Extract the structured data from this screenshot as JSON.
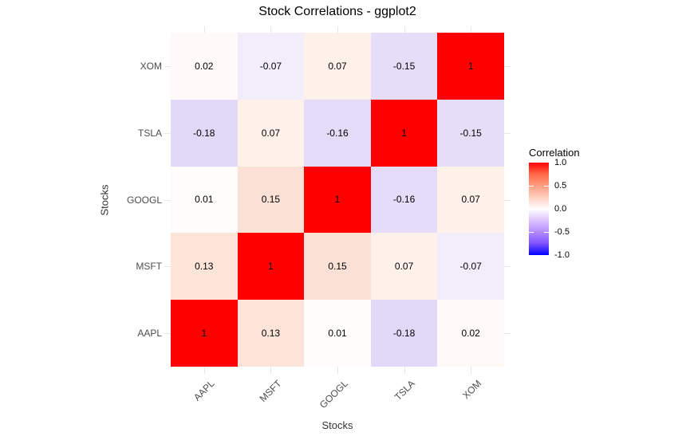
{
  "page": {
    "background": "#FFFFFF"
  },
  "chart_data": {
    "type": "heatmap",
    "title": "Stock Correlations - ggplot2",
    "xlabel": "Stocks",
    "ylabel": "Stocks",
    "x_categories": [
      "AAPL",
      "MSFT",
      "GOOGL",
      "TSLA",
      "XOM"
    ],
    "y_categories_top_to_bottom": [
      "XOM",
      "TSLA",
      "GOOGL",
      "MSFT",
      "AAPL"
    ],
    "grid_color": "#E6E6E6",
    "axis_tick_color": "#4D4D4D",
    "cell_text_color": "#000000",
    "rows": [
      {
        "label": "XOM",
        "values": [
          0.02,
          -0.07,
          0.07,
          -0.15,
          1
        ],
        "labels": [
          "0.02",
          "-0.07",
          "0.07",
          "-0.15",
          "1"
        ],
        "colors": [
          "#FFFAF7",
          "#F1EDFB",
          "#FEF1EA",
          "#E6DEF8",
          "#FF0000"
        ]
      },
      {
        "label": "TSLA",
        "values": [
          -0.18,
          0.07,
          -0.16,
          1,
          -0.15
        ],
        "labels": [
          "-0.18",
          "0.07",
          "-0.16",
          "1",
          "-0.15"
        ],
        "colors": [
          "#E2D8F7",
          "#FEF1EA",
          "#E4DCF8",
          "#FF0000",
          "#E6DEF8"
        ]
      },
      {
        "label": "GOOGL",
        "values": [
          0.01,
          0.15,
          1,
          -0.16,
          0.07
        ],
        "labels": [
          "0.01",
          "0.15",
          "1",
          "-0.16",
          "0.07"
        ],
        "colors": [
          "#FFFCFB",
          "#FBE1D5",
          "#FF0000",
          "#E4DCF8",
          "#FEF1EA"
        ]
      },
      {
        "label": "MSFT",
        "values": [
          0.13,
          1,
          0.15,
          0.07,
          -0.07
        ],
        "labels": [
          "0.13",
          "1",
          "0.15",
          "0.07",
          "-0.07"
        ],
        "colors": [
          "#FCE4D9",
          "#FF0000",
          "#FBE1D5",
          "#FEF1EA",
          "#F1EDFB"
        ]
      },
      {
        "label": "AAPL",
        "values": [
          1,
          0.13,
          0.01,
          -0.18,
          0.02
        ],
        "labels": [
          "1",
          "0.13",
          "0.01",
          "-0.18",
          "0.02"
        ],
        "colors": [
          "#FF0000",
          "#FCE4D9",
          "#FFFCFB",
          "#E2D8F7",
          "#FFFAF7"
        ]
      }
    ],
    "legend": {
      "title": "Correlation",
      "position": "right",
      "limits": [
        -1,
        1
      ],
      "high_color": "#FF0000",
      "mid_color": "#FFFFFF",
      "low_color": "#0000FF",
      "gradient_stops": [
        "#FF0000",
        "#FF6846",
        "#FF9E81",
        "#FFCFBF",
        "#FFFFFF",
        "#DCC4FF",
        "#B38BFF",
        "#7E51FF",
        "#0000FF"
      ],
      "ticks": [
        {
          "label": "1.0",
          "value": 1
        },
        {
          "label": "0.5",
          "value": 0.5
        },
        {
          "label": "0.0",
          "value": 0
        },
        {
          "label": "-0.5",
          "value": -0.5
        },
        {
          "label": "-1.0",
          "value": -1
        }
      ],
      "tick_marks": [
        0.5,
        -0.5
      ]
    }
  }
}
